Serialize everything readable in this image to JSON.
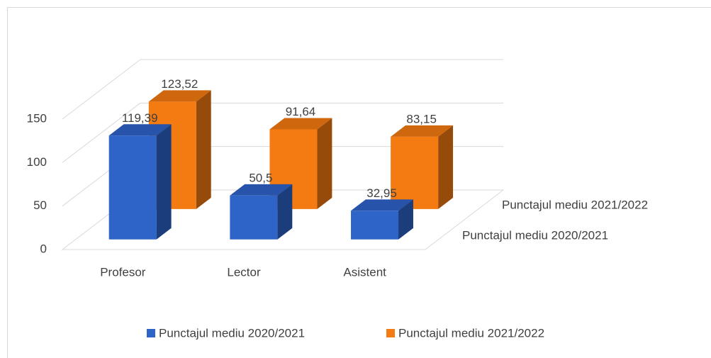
{
  "chart_data": {
    "type": "bar3d",
    "categories": [
      "Profesor",
      "Lector",
      "Asistent"
    ],
    "series": [
      {
        "name": "Punctajul mediu 2020/2021",
        "color": "#2e63c8",
        "values": [
          119.39,
          50.5,
          32.95
        ],
        "value_labels": [
          "119,39",
          "50,5",
          "32,95"
        ]
      },
      {
        "name": "Punctajul mediu 2021/2022",
        "color": "#f47a12",
        "values": [
          123.52,
          91.64,
          83.15
        ],
        "value_labels": [
          "123,52",
          "91,64",
          "83,15"
        ]
      }
    ],
    "ylim": [
      0,
      150
    ],
    "yticks": [
      0,
      50,
      100,
      150
    ],
    "grid": true,
    "legend": "bottom"
  }
}
